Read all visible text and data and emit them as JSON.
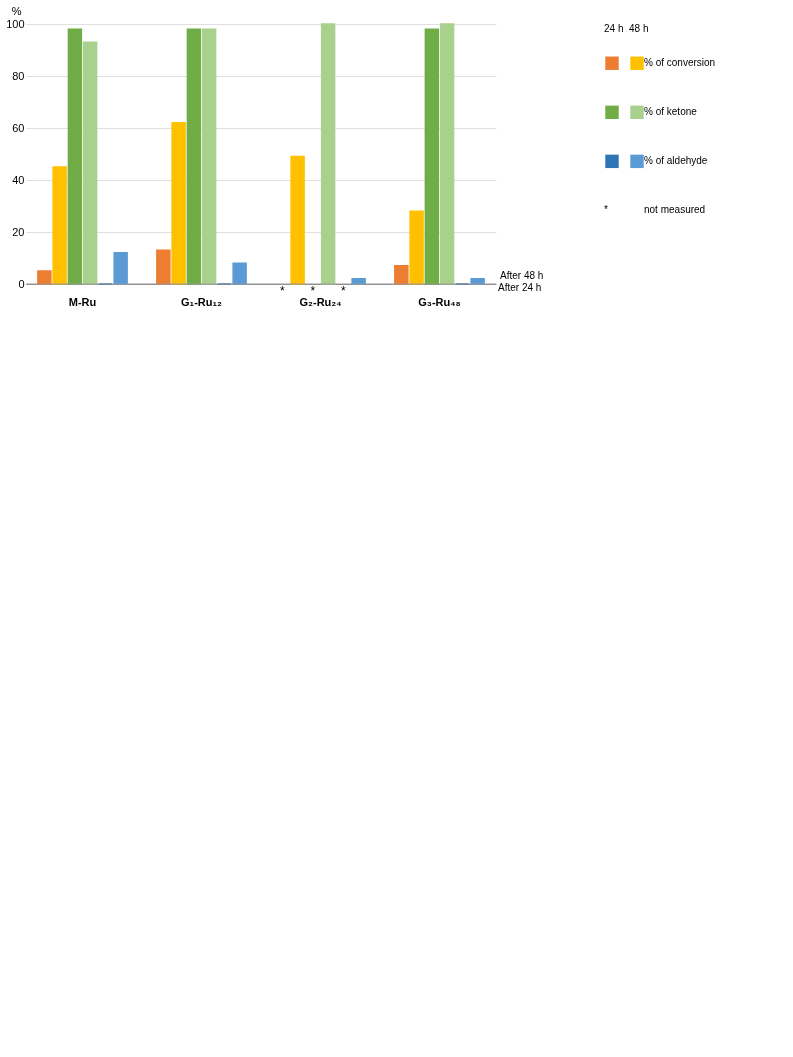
{
  "chart_data": {
    "type": "bar",
    "ylabel": "%",
    "categories": [
      "M-Ru",
      "G₁-Ru₁₂",
      "G₂-Ru₂₄",
      "G₃-Ru₄₈"
    ],
    "series": [
      {
        "color": "#ed7d31",
        "values": [
          5,
          13,
          null,
          7
        ]
      },
      {
        "name": "% of conversion",
        "color": "#ffc000",
        "values": [
          45,
          62,
          49,
          28
        ]
      },
      {
        "color": "#70ad47",
        "values": [
          98,
          98,
          null,
          98
        ]
      },
      {
        "name": "% of ketone",
        "color": "#a9d18e",
        "values": [
          93,
          98,
          100,
          100
        ]
      },
      {
        "color": "#2e75b6",
        "values": [
          0,
          0,
          null,
          0
        ]
      },
      {
        "name": "% of aldehyde",
        "color": "#5b9bd5",
        "values": [
          12,
          8,
          2,
          2
        ]
      }
    ],
    "ylim": [
      0,
      100
    ],
    "yticks": [
      0,
      20,
      40,
      60,
      80,
      100
    ],
    "grid": "y",
    "legend": "right",
    "annotations": [
      "24 h",
      "48 h",
      "*",
      "not measured",
      "After 48 h",
      "After 24 h"
    ]
  }
}
